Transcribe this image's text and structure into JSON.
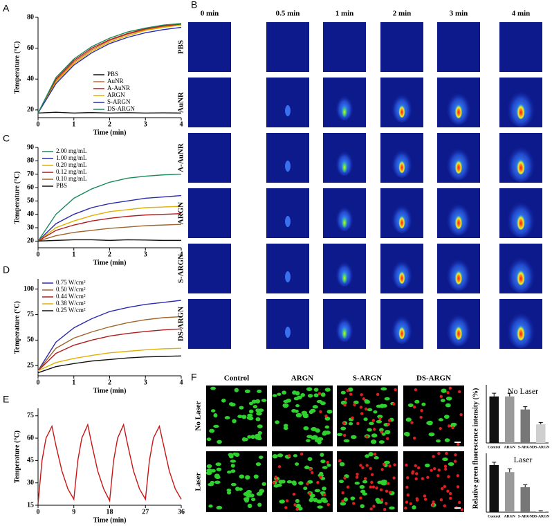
{
  "chart_data": [
    {
      "type": "line",
      "panel": "A",
      "xlabel": "Time (min)",
      "ylabel": "Temperature (°C)",
      "x": [
        0,
        0.5,
        1,
        1.5,
        2,
        2.5,
        3,
        3.5,
        4
      ],
      "xlim": [
        0,
        4
      ],
      "xticks": [
        0,
        1,
        2,
        3,
        4
      ],
      "ylim": [
        15,
        80
      ],
      "yticks": [
        20,
        40,
        60,
        80
      ],
      "legend": "lower right",
      "series": [
        {
          "name": "PBS",
          "color": "#111111",
          "values": [
            18,
            18.5,
            18,
            18.3,
            18,
            18.2,
            18,
            18.1,
            18
          ]
        },
        {
          "name": "AuNR",
          "color": "#c8642a",
          "values": [
            18,
            39,
            51,
            59,
            65,
            69,
            72,
            74,
            75
          ]
        },
        {
          "name": "A-AuNR",
          "color": "#b01c1c",
          "values": [
            18,
            40,
            52,
            60,
            65.5,
            69.5,
            72.5,
            74.5,
            75.5
          ]
        },
        {
          "name": "ARGN",
          "color": "#e0b000",
          "values": [
            18,
            38,
            50,
            58,
            64,
            68,
            71.5,
            73.5,
            75
          ]
        },
        {
          "name": "S-ARGN",
          "color": "#2a2ab0",
          "values": [
            18,
            37,
            49,
            57,
            63,
            67,
            70,
            72,
            73.5
          ]
        },
        {
          "name": "DS-ARGN",
          "color": "#1a8a5a",
          "values": [
            18,
            41,
            53,
            61,
            66.5,
            70.5,
            73,
            75,
            76
          ]
        }
      ]
    },
    {
      "type": "line",
      "panel": "C",
      "xlabel": "Time (min)",
      "ylabel": "Temperature (°C)",
      "x": [
        0,
        0.5,
        1,
        1.5,
        2,
        2.5,
        3,
        3.5,
        4
      ],
      "xlim": [
        0,
        4
      ],
      "xticks": [
        0,
        1,
        2,
        3,
        4
      ],
      "ylim": [
        15,
        90
      ],
      "yticks": [
        20,
        30,
        40,
        50,
        60,
        70,
        80,
        90
      ],
      "legend": "upper left",
      "series": [
        {
          "name": "2.00 mg/mL",
          "color": "#1a8a5a",
          "values": [
            20,
            40,
            52,
            59,
            64,
            67,
            68.5,
            69.5,
            70
          ]
        },
        {
          "name": "1.00 mg/mL",
          "color": "#2a2ab0",
          "values": [
            20,
            33,
            40,
            45,
            48,
            50,
            52,
            53,
            54
          ]
        },
        {
          "name": "0.20 mg/mL",
          "color": "#e0b000",
          "values": [
            20,
            30,
            35,
            39,
            42,
            43.5,
            45,
            45.5,
            46
          ]
        },
        {
          "name": "0.12 mg/mL",
          "color": "#b01c1c",
          "values": [
            20,
            28,
            32,
            35,
            37,
            38.5,
            39.5,
            40,
            40.5
          ]
        },
        {
          "name": "0.10 mg/mL",
          "color": "#a0642a",
          "values": [
            20,
            24,
            26.5,
            28,
            29.5,
            30.5,
            31.5,
            32,
            32.5
          ]
        },
        {
          "name": "PBS",
          "color": "#111111",
          "values": [
            20,
            20.5,
            21,
            21,
            20.5,
            21,
            20.8,
            20.5,
            20.5
          ]
        }
      ]
    },
    {
      "type": "line",
      "panel": "D",
      "xlabel": "Time (min)",
      "ylabel": "Temperature (°C)",
      "x": [
        0,
        0.5,
        1,
        1.5,
        2,
        2.5,
        3,
        3.5,
        4
      ],
      "xlim": [
        0,
        4
      ],
      "xticks": [
        0,
        1,
        2,
        3,
        4
      ],
      "ylim": [
        15,
        110
      ],
      "yticks": [
        25,
        50,
        75,
        100
      ],
      "legend": "upper left",
      "series": [
        {
          "name": "0.75 W/cm²",
          "color": "#2a2ab0",
          "values": [
            20,
            48,
            62,
            71,
            78,
            82,
            85,
            87,
            89
          ]
        },
        {
          "name": "0.50 W/cm²",
          "color": "#a0642a",
          "values": [
            20,
            42,
            52,
            58,
            63,
            67,
            70,
            72,
            73
          ]
        },
        {
          "name": "0.44 W/cm²",
          "color": "#b01c1c",
          "values": [
            20,
            37,
            45,
            50,
            54,
            56.5,
            58.5,
            60,
            61
          ]
        },
        {
          "name": "0.38 W/cm²",
          "color": "#e0b000",
          "values": [
            20,
            28,
            32,
            35,
            37.5,
            39,
            40.5,
            41.5,
            42
          ]
        },
        {
          "name": "0.25 W/cm²",
          "color": "#111111",
          "values": [
            18,
            24,
            27,
            29.5,
            31,
            32.5,
            33.5,
            34,
            34.5
          ]
        }
      ]
    },
    {
      "type": "line",
      "panel": "E",
      "xlabel": "Time (min)",
      "ylabel": "Temperature (°C)",
      "x": [
        0,
        1,
        2,
        3.5,
        4.5,
        6,
        7.5,
        9,
        10,
        11,
        12.5,
        13.5,
        15,
        16.5,
        18,
        19,
        20,
        21.5,
        22.5,
        24,
        25.5,
        27,
        28,
        29,
        30.5,
        31.5,
        33,
        34.5,
        36
      ],
      "values": [
        16,
        45,
        60,
        68,
        55,
        38,
        26,
        19,
        45,
        60,
        69,
        56,
        38,
        26,
        18,
        45,
        60,
        69,
        56,
        38,
        26,
        19,
        45,
        60,
        68,
        56,
        38,
        26,
        19
      ],
      "color": "#c81414",
      "xlim": [
        0,
        36
      ],
      "xticks": [
        0,
        9,
        18,
        27,
        36
      ],
      "ylim": [
        15,
        80
      ],
      "yticks": [
        15,
        30,
        45,
        60,
        75
      ]
    },
    {
      "type": "bar",
      "ylabel": "Relative green fluorescence intensity (%)",
      "annotation": "No Laser",
      "categories": [
        "Control",
        "ARGN",
        "S-ARGN",
        "DS-ARGN"
      ],
      "values": [
        100,
        100,
        72,
        40
      ],
      "errors": [
        7,
        7,
        6,
        4
      ],
      "colors": [
        "#111111",
        "#9a9a9a",
        "#777777",
        "#cfcfcf"
      ],
      "ylim": [
        0,
        125
      ]
    },
    {
      "type": "bar",
      "annotation": "Laser",
      "categories": [
        "Control",
        "ARGN",
        "S-ARGN",
        "DS-ARGN"
      ],
      "values": [
        100,
        85,
        53,
        2
      ],
      "errors": [
        6,
        7,
        5,
        1
      ],
      "colors": [
        "#111111",
        "#9a9a9a",
        "#777777",
        "#cfcfcf"
      ],
      "ylim": [
        0,
        125
      ]
    }
  ],
  "thermal_images": {
    "panel": "B",
    "columns": [
      "0 min",
      "0.5  min",
      "1 min",
      "2 min",
      "3 min",
      "4 min"
    ],
    "rows": [
      "PBS",
      "AuNR",
      "A-AuNR",
      "ARGN",
      "S-ARGN",
      "DS-ARGN"
    ]
  },
  "cell_images": {
    "panel": "F",
    "columns": [
      "Control",
      "ARGN",
      "S-ARGN",
      "DS-ARGN"
    ],
    "rows": [
      "No Laser",
      "Laser"
    ]
  }
}
